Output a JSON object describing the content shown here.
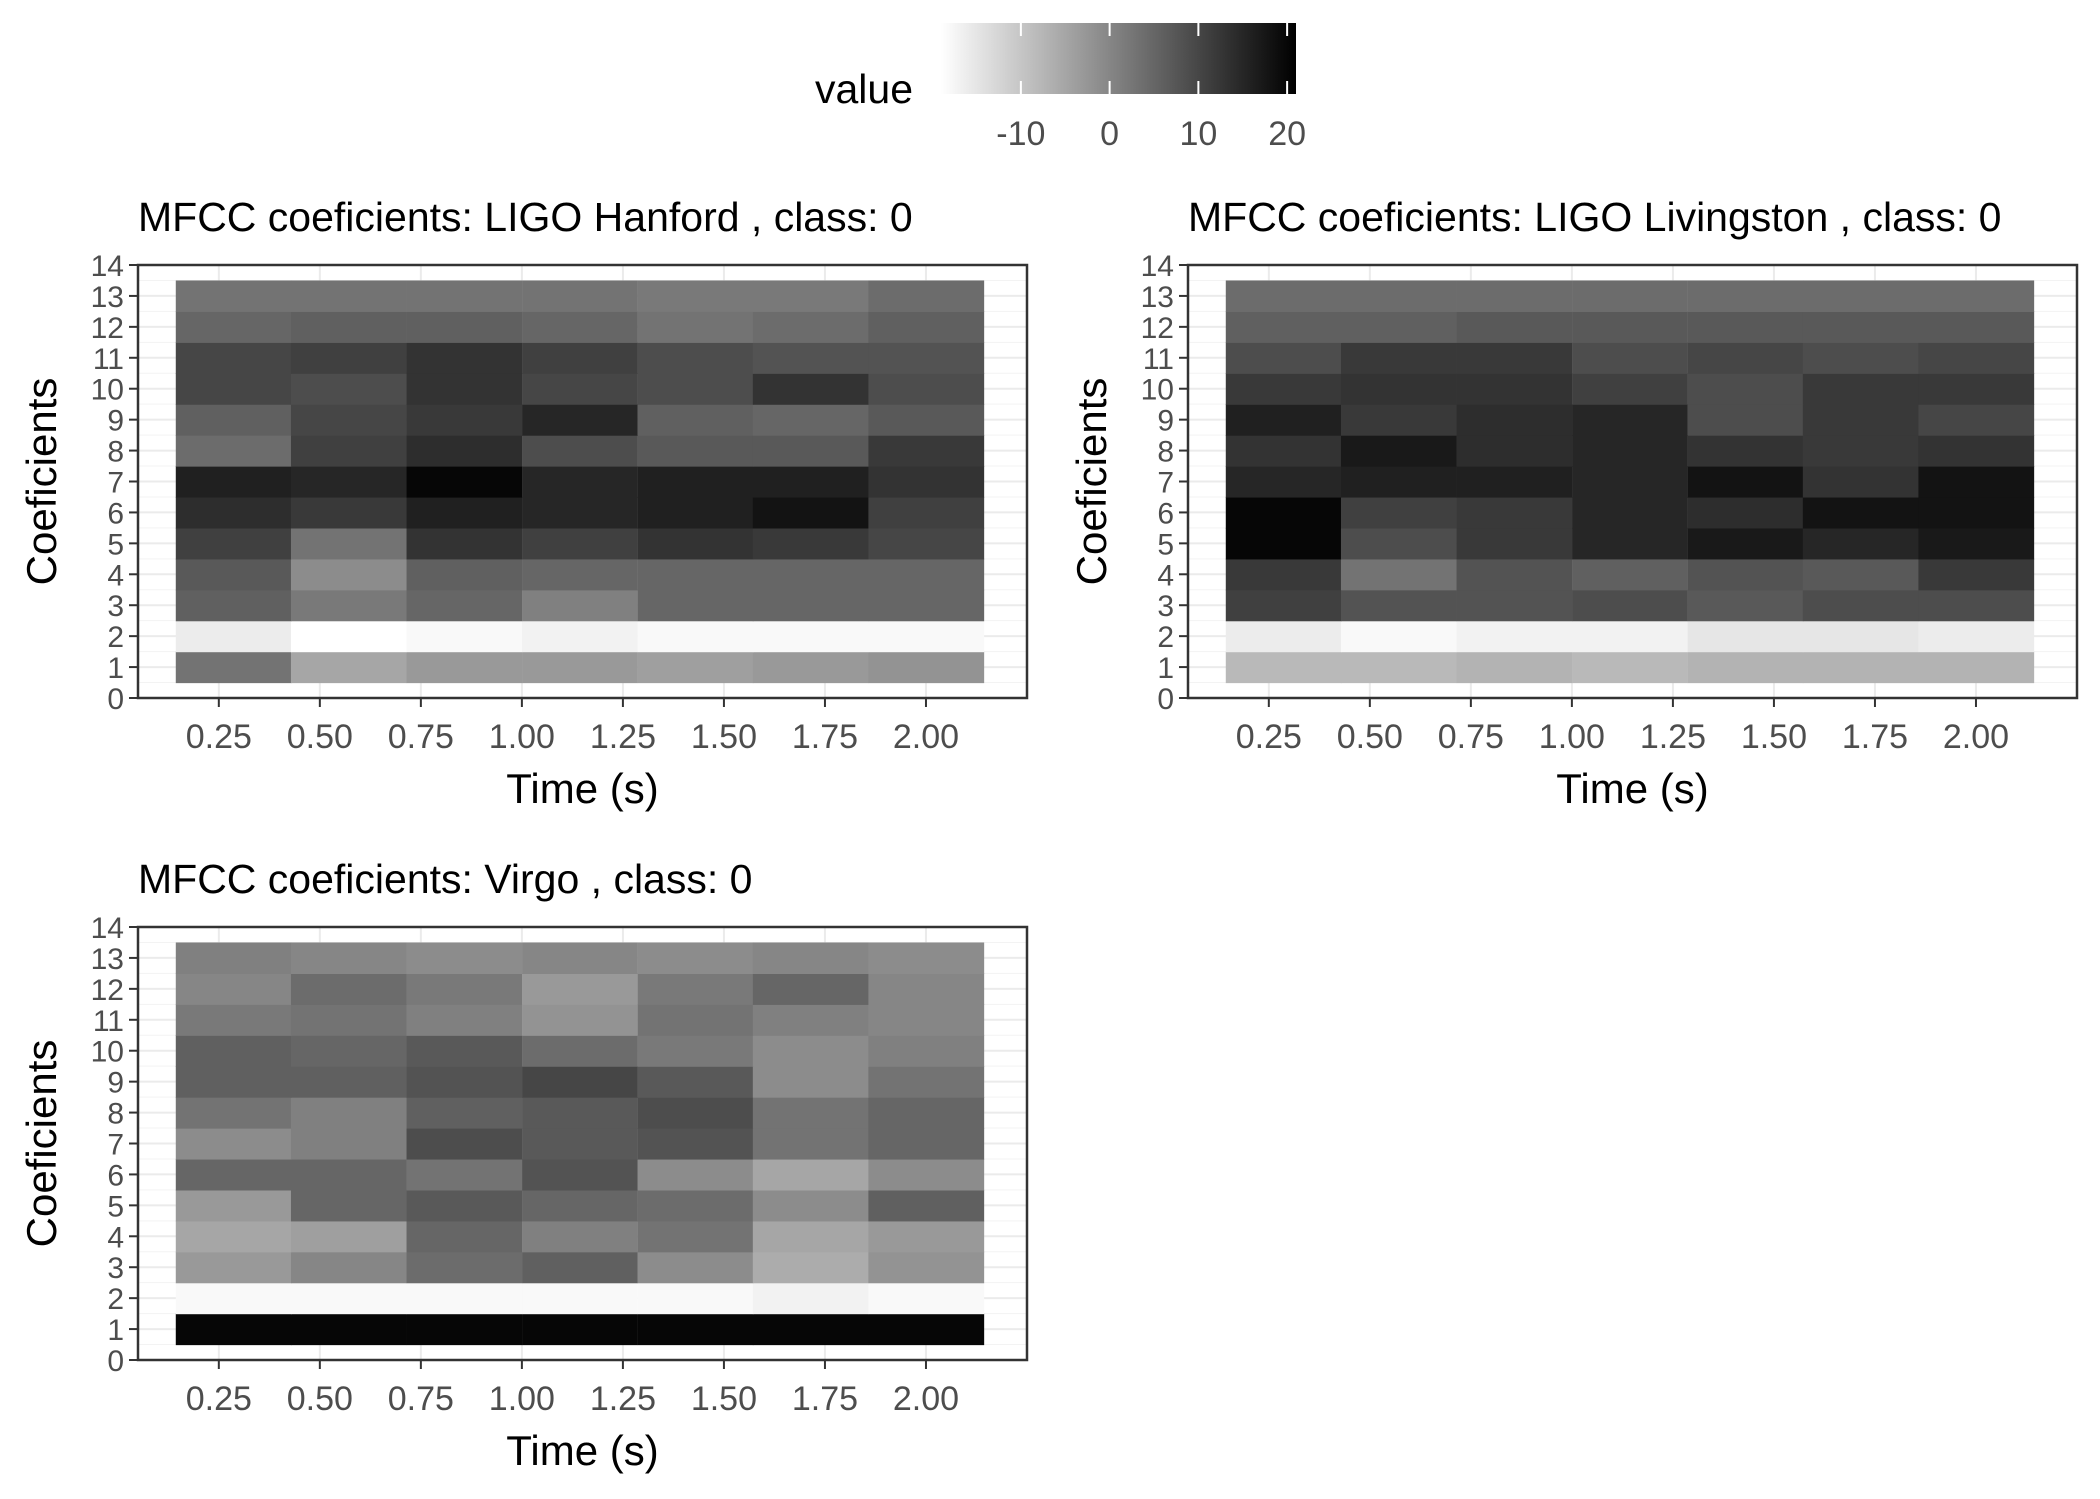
{
  "legend": {
    "title": "value",
    "ticks": [
      "-10",
      "0",
      "10",
      "20"
    ],
    "tick_values": [
      -10,
      0,
      10,
      20
    ],
    "range": [
      -19,
      21
    ],
    "colors": [
      "#ffffff",
      "#000000"
    ],
    "placement": "top"
  },
  "chart_data": [
    {
      "type": "heatmap",
      "title": "MFCC coeficients: LIGO Hanford , class: 0",
      "xlabel": "Time (s)",
      "ylabel": "Coeficients",
      "x_ticks": [
        "0.25",
        "0.50",
        "0.75",
        "1.00",
        "1.25",
        "1.50",
        "1.75",
        "2.00"
      ],
      "y_ticks": [
        "0",
        "1",
        "2",
        "3",
        "4",
        "5",
        "6",
        "7",
        "8",
        "9",
        "10",
        "11",
        "12",
        "13",
        "14"
      ],
      "xlim": [
        0.05,
        2.25
      ],
      "ylim": [
        0,
        14
      ],
      "grid": true,
      "x": [
        0.286,
        0.571,
        0.857,
        1.143,
        1.429,
        1.714,
        2.0
      ],
      "y": [
        1,
        2,
        3,
        4,
        5,
        6,
        7,
        8,
        9,
        10,
        11,
        12,
        13
      ],
      "values": [
        [
          3,
          -5,
          -3,
          -3,
          -4,
          -3,
          -2
        ],
        [
          -16,
          -19,
          -18,
          -17,
          -18,
          -18,
          -18
        ],
        [
          6,
          2,
          5,
          1,
          5,
          5,
          5
        ],
        [
          7,
          -1,
          6,
          5,
          5,
          5,
          5
        ],
        [
          11,
          3,
          13,
          11,
          13,
          12,
          10
        ],
        [
          14,
          12,
          16,
          15,
          16,
          18,
          11
        ],
        [
          16,
          15,
          20,
          15,
          16,
          16,
          13
        ],
        [
          4,
          11,
          14,
          9,
          7,
          7,
          12
        ],
        [
          6,
          10,
          12,
          15,
          6,
          5,
          7
        ],
        [
          10,
          9,
          13,
          10,
          9,
          13,
          9
        ],
        [
          10,
          11,
          13,
          11,
          9,
          8,
          8
        ],
        [
          5,
          6,
          6,
          5,
          3,
          4,
          6
        ],
        [
          3,
          3,
          3,
          3,
          2,
          2,
          4
        ]
      ]
    },
    {
      "type": "heatmap",
      "title": "MFCC coeficients: LIGO Livingston , class: 0",
      "xlabel": "Time (s)",
      "ylabel": "Coeficients",
      "x_ticks": [
        "0.25",
        "0.50",
        "0.75",
        "1.00",
        "1.25",
        "1.50",
        "1.75",
        "2.00"
      ],
      "y_ticks": [
        "0",
        "1",
        "2",
        "3",
        "4",
        "5",
        "6",
        "7",
        "8",
        "9",
        "10",
        "11",
        "12",
        "13",
        "14"
      ],
      "xlim": [
        0.05,
        2.25
      ],
      "ylim": [
        0,
        14
      ],
      "grid": true,
      "x": [
        0.286,
        0.571,
        0.857,
        1.143,
        1.429,
        1.714,
        2.0
      ],
      "y": [
        1,
        2,
        3,
        4,
        5,
        6,
        7,
        8,
        9,
        10,
        11,
        12,
        13
      ],
      "values": [
        [
          -8,
          -8,
          -7,
          -8,
          -7,
          -7,
          -7
        ],
        [
          -16,
          -18,
          -17,
          -17,
          -15,
          -15,
          -16
        ],
        [
          11,
          8,
          8,
          9,
          7,
          9,
          9
        ],
        [
          12,
          3,
          8,
          6,
          8,
          7,
          12
        ],
        [
          20,
          9,
          12,
          15,
          17,
          15,
          17
        ],
        [
          20,
          11,
          12,
          15,
          14,
          18,
          18
        ],
        [
          15,
          16,
          16,
          15,
          18,
          13,
          18
        ],
        [
          13,
          17,
          14,
          15,
          13,
          12,
          13
        ],
        [
          16,
          12,
          14,
          15,
          9,
          12,
          10
        ],
        [
          12,
          13,
          13,
          11,
          9,
          12,
          12
        ],
        [
          9,
          12,
          12,
          9,
          10,
          9,
          10
        ],
        [
          6,
          6,
          7,
          7,
          7,
          7,
          7
        ],
        [
          4,
          4,
          4,
          4,
          4,
          4,
          4
        ]
      ]
    },
    {
      "type": "heatmap",
      "title": "MFCC coeficients: Virgo , class: 0",
      "xlabel": "Time (s)",
      "ylabel": "Coeficients",
      "x_ticks": [
        "0.25",
        "0.50",
        "0.75",
        "1.00",
        "1.25",
        "1.50",
        "1.75",
        "2.00"
      ],
      "y_ticks": [
        "0",
        "1",
        "2",
        "3",
        "4",
        "5",
        "6",
        "7",
        "8",
        "9",
        "10",
        "11",
        "12",
        "13",
        "14"
      ],
      "xlim": [
        0.05,
        2.25
      ],
      "ylim": [
        0,
        14
      ],
      "grid": true,
      "x": [
        0.286,
        0.571,
        0.857,
        1.143,
        1.429,
        1.714,
        2.0
      ],
      "y": [
        1,
        2,
        3,
        4,
        5,
        6,
        7,
        8,
        9,
        10,
        11,
        12,
        13
      ],
      "values": [
        [
          20,
          20,
          20,
          20,
          20,
          20,
          20
        ],
        [
          -18,
          -18,
          -18,
          -18,
          -18,
          -17,
          -18
        ],
        [
          -3,
          0,
          4,
          6,
          -1,
          -6,
          -2
        ],
        [
          -5,
          -4,
          5,
          1,
          3,
          -5,
          -3
        ],
        [
          -3,
          5,
          7,
          5,
          4,
          -1,
          6
        ],
        [
          5,
          5,
          3,
          8,
          -1,
          -5,
          -1
        ],
        [
          -1,
          1,
          9,
          7,
          8,
          3,
          5
        ],
        [
          3,
          1,
          6,
          7,
          9,
          3,
          5
        ],
        [
          6,
          6,
          8,
          10,
          7,
          -1,
          3
        ],
        [
          6,
          5,
          7,
          4,
          2,
          -1,
          1
        ],
        [
          2,
          3,
          1,
          -2,
          3,
          1,
          0
        ],
        [
          0,
          4,
          2,
          -3,
          2,
          5,
          0
        ],
        [
          1,
          0,
          -1,
          0,
          -1,
          0,
          -1
        ]
      ]
    }
  ]
}
